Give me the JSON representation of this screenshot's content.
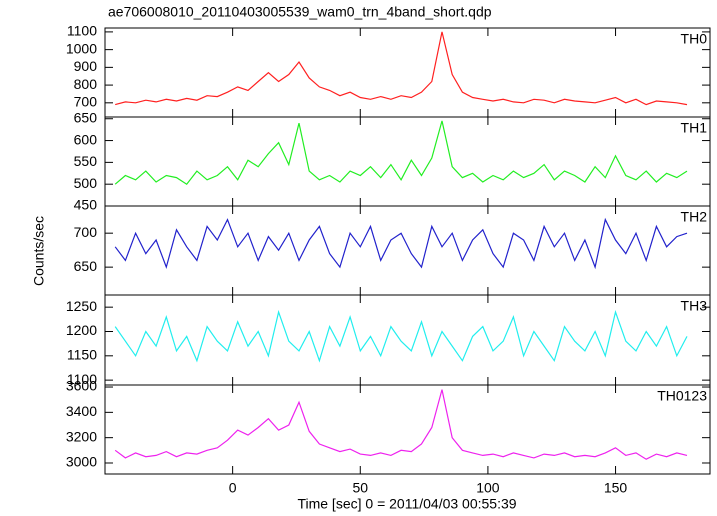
{
  "chart_data": {
    "type": "line",
    "title": "ae706008010_20110403005539_wam0_trn_4band_short.qdp",
    "x_label": "Time [sec] 0 = 2011/04/03 00:55:39",
    "y_label": "Counts/sec",
    "x": [
      -46,
      -42,
      -38,
      -34,
      -30,
      -26,
      -22,
      -18,
      -14,
      -10,
      -6,
      -2,
      2,
      6,
      10,
      14,
      18,
      22,
      26,
      30,
      34,
      38,
      42,
      46,
      50,
      54,
      58,
      62,
      66,
      70,
      74,
      78,
      82,
      86,
      90,
      94,
      98,
      102,
      106,
      110,
      114,
      118,
      122,
      126,
      130,
      134,
      138,
      142,
      146,
      150,
      154,
      158,
      162,
      166,
      170,
      174,
      178
    ],
    "xlim": [
      -50,
      187
    ],
    "xticks": [
      0,
      50,
      100,
      150
    ],
    "series": [
      {
        "name": "TH0",
        "color": "#ff2020",
        "ylim": [
          620,
          1122
        ],
        "yticks": [
          700,
          800,
          900,
          1000,
          1100
        ],
        "values": [
          690,
          705,
          700,
          715,
          705,
          720,
          710,
          725,
          715,
          740,
          735,
          760,
          790,
          770,
          820,
          870,
          820,
          860,
          930,
          840,
          790,
          770,
          740,
          760,
          730,
          720,
          735,
          720,
          740,
          730,
          760,
          820,
          1100,
          860,
          760,
          730,
          720,
          710,
          720,
          705,
          700,
          720,
          715,
          700,
          720,
          710,
          705,
          700,
          715,
          730,
          700,
          720,
          690,
          710,
          705,
          700,
          690
        ]
      },
      {
        "name": "TH1",
        "color": "#22ee22",
        "ylim": [
          450,
          654
        ],
        "yticks": [
          450,
          500,
          550,
          600,
          650
        ],
        "values": [
          500,
          520,
          510,
          530,
          505,
          520,
          515,
          500,
          530,
          510,
          520,
          540,
          510,
          555,
          540,
          570,
          595,
          545,
          640,
          530,
          510,
          520,
          505,
          530,
          520,
          540,
          515,
          545,
          510,
          555,
          520,
          560,
          645,
          540,
          515,
          525,
          505,
          520,
          510,
          530,
          515,
          525,
          545,
          510,
          530,
          520,
          505,
          540,
          515,
          565,
          520,
          510,
          530,
          505,
          525,
          515,
          530
        ]
      },
      {
        "name": "TH2",
        "color": "#2222cc",
        "ylim": [
          609,
          740
        ],
        "yticks": [
          650,
          700
        ],
        "values": [
          680,
          660,
          700,
          670,
          690,
          650,
          705,
          680,
          660,
          710,
          690,
          720,
          680,
          700,
          660,
          695,
          675,
          700,
          660,
          690,
          710,
          670,
          650,
          700,
          680,
          710,
          660,
          690,
          700,
          670,
          650,
          710,
          680,
          700,
          660,
          690,
          705,
          670,
          650,
          700,
          690,
          660,
          710,
          680,
          700,
          660,
          690,
          650,
          720,
          690,
          670,
          700,
          660,
          710,
          680,
          695,
          700
        ]
      },
      {
        "name": "TH3",
        "color": "#22eeee",
        "ylim": [
          1090,
          1275
        ],
        "yticks": [
          1100,
          1150,
          1200,
          1250
        ],
        "values": [
          1210,
          1180,
          1150,
          1200,
          1170,
          1230,
          1160,
          1190,
          1140,
          1210,
          1180,
          1160,
          1220,
          1170,
          1200,
          1150,
          1240,
          1180,
          1160,
          1200,
          1140,
          1210,
          1170,
          1230,
          1160,
          1190,
          1150,
          1210,
          1180,
          1160,
          1220,
          1150,
          1200,
          1170,
          1140,
          1190,
          1210,
          1160,
          1180,
          1230,
          1150,
          1200,
          1170,
          1140,
          1210,
          1180,
          1160,
          1200,
          1150,
          1240,
          1180,
          1160,
          1200,
          1170,
          1210,
          1150,
          1190
        ]
      },
      {
        "name": "TH0123",
        "color": "#ee22ee",
        "ylim": [
          2913,
          3616
        ],
        "yticks": [
          3000,
          3200,
          3400,
          3600
        ],
        "values": [
          3100,
          3040,
          3080,
          3050,
          3060,
          3090,
          3050,
          3080,
          3070,
          3100,
          3120,
          3180,
          3260,
          3220,
          3280,
          3350,
          3260,
          3300,
          3480,
          3250,
          3150,
          3120,
          3090,
          3110,
          3070,
          3060,
          3080,
          3060,
          3100,
          3090,
          3150,
          3280,
          3580,
          3200,
          3100,
          3080,
          3060,
          3070,
          3050,
          3080,
          3060,
          3040,
          3070,
          3060,
          3080,
          3050,
          3060,
          3050,
          3080,
          3120,
          3060,
          3080,
          3030,
          3070,
          3050,
          3080,
          3060
        ]
      }
    ]
  }
}
